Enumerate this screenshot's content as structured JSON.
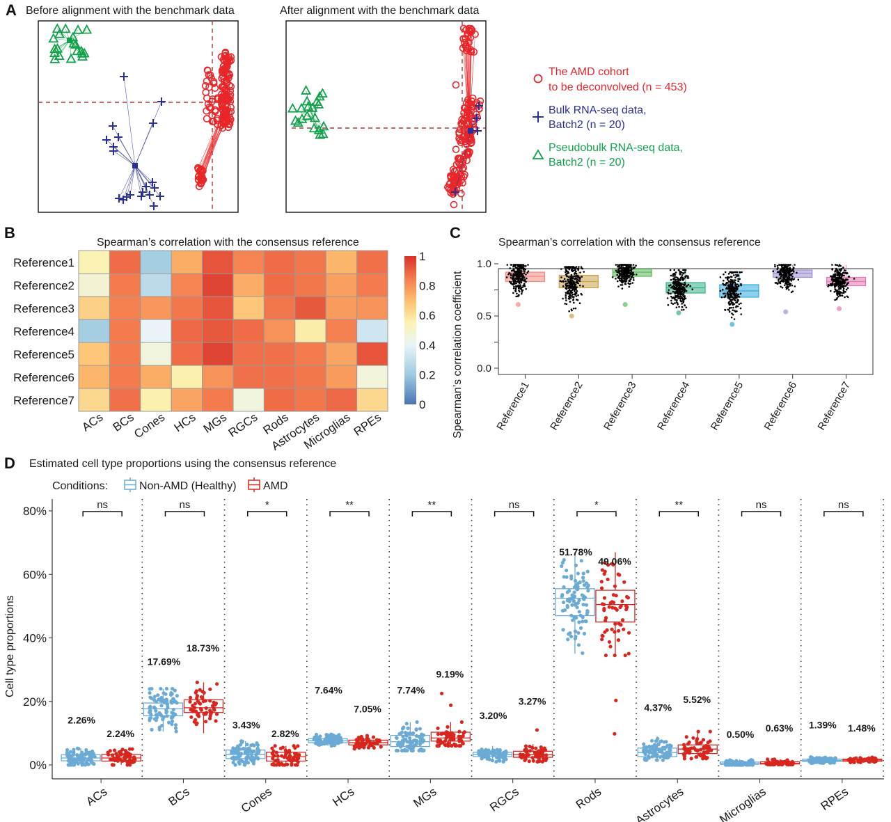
{
  "figure": {
    "panels": [
      "A",
      "B",
      "C",
      "D"
    ]
  },
  "chart_data": [
    {
      "panel": "A",
      "type": "scatter",
      "subplots": [
        {
          "title": "Before alignment with the benchmark data"
        },
        {
          "title": "After alignment with the benchmark data"
        }
      ],
      "legend": {
        "placement": "right",
        "entries": [
          {
            "symbol": "circle",
            "color": "#e8262a",
            "line1": "The AMD cohort",
            "line2": "to be deconvolved (n = 453)"
          },
          {
            "symbol": "plus",
            "color": "#2b3192",
            "line1": "Bulk RNA-seq data,",
            "line2": "Batch2 (n = 20)"
          },
          {
            "symbol": "triangle",
            "color": "#12a14b",
            "line1": "Pseudobulk RNA-seq data,",
            "line2": "Batch2 (n = 20)"
          }
        ]
      },
      "colors": {
        "amd": "#e8262a",
        "bulk": "#2b3192",
        "pseudobulk": "#12a14b",
        "crosshair": "#a33a3a"
      }
    },
    {
      "panel": "B",
      "type": "heatmap",
      "title": "Spearman’s correlation with the consensus reference",
      "rows": [
        "Reference1",
        "Reference2",
        "Reference3",
        "Reference4",
        "Reference5",
        "Reference6",
        "Reference7"
      ],
      "columns": [
        "ACs",
        "BCs",
        "Cones",
        "HCs",
        "MGs",
        "RGCs",
        "Rods",
        "Astrocytes",
        "Microglias",
        "RPEs"
      ],
      "values": [
        [
          0.55,
          0.88,
          0.22,
          0.74,
          0.93,
          0.83,
          0.88,
          0.86,
          0.72,
          0.87
        ],
        [
          0.48,
          0.85,
          0.28,
          0.83,
          0.96,
          0.74,
          0.88,
          0.86,
          0.77,
          0.85
        ],
        [
          0.65,
          0.84,
          0.79,
          0.86,
          0.93,
          0.68,
          0.86,
          0.92,
          0.78,
          0.8
        ],
        [
          0.22,
          0.85,
          0.4,
          0.89,
          0.92,
          0.88,
          0.8,
          0.57,
          0.84,
          0.33
        ],
        [
          0.68,
          0.85,
          0.46,
          0.88,
          0.96,
          0.87,
          0.87,
          0.85,
          0.76,
          0.93
        ],
        [
          0.72,
          0.85,
          0.74,
          0.56,
          0.8,
          0.87,
          0.87,
          0.86,
          0.78,
          0.47
        ],
        [
          0.63,
          0.87,
          0.56,
          0.76,
          0.85,
          0.46,
          0.88,
          0.86,
          0.89,
          0.63
        ]
      ],
      "colorbar": {
        "min": 0,
        "max": 1,
        "ticks": [
          "0",
          "0.2",
          "0.4",
          "0.6",
          "0.8",
          "1"
        ],
        "placement": "right",
        "stops": [
          "#4a74b4",
          "#9ecae1",
          "#e9f4f8",
          "#fbf3b3",
          "#fdbf6f",
          "#f47b4e",
          "#d9322a"
        ]
      }
    },
    {
      "panel": "C",
      "type": "box",
      "title": "Spearman’s correlation with the consensus reference",
      "ylabel": "Spearman’s correlation coefficient",
      "ylim": [
        -0.03,
        1.03
      ],
      "yticks": [
        "0.0",
        "0.5",
        "1.0"
      ],
      "yticks_values": [
        0.0,
        0.5,
        1.0
      ],
      "minor_yticks": [
        0.25,
        0.75
      ],
      "categories": [
        "Reference1",
        "Reference2",
        "Reference3",
        "Reference4",
        "Reference5",
        "Reference6",
        "Reference7"
      ],
      "boxes": [
        {
          "q1": 0.83,
          "median": 0.88,
          "q3": 0.92,
          "low": 0.61,
          "high": 0.99,
          "color": "#f08a80"
        },
        {
          "q1": 0.77,
          "median": 0.83,
          "q3": 0.89,
          "low": 0.5,
          "high": 0.97,
          "color": "#c9a24a"
        },
        {
          "q1": 0.88,
          "median": 0.92,
          "q3": 0.95,
          "low": 0.61,
          "high": 0.99,
          "color": "#5cb85c"
        },
        {
          "q1": 0.72,
          "median": 0.77,
          "q3": 0.82,
          "low": 0.53,
          "high": 0.94,
          "color": "#35b08a"
        },
        {
          "q1": 0.68,
          "median": 0.74,
          "q3": 0.8,
          "low": 0.42,
          "high": 0.92,
          "color": "#33a9dc"
        },
        {
          "q1": 0.87,
          "median": 0.91,
          "q3": 0.94,
          "low": 0.54,
          "high": 0.99,
          "color": "#9f8fd0"
        },
        {
          "q1": 0.79,
          "median": 0.83,
          "q3": 0.87,
          "low": 0.57,
          "high": 0.99,
          "color": "#e377b5"
        }
      ]
    },
    {
      "panel": "D",
      "type": "box",
      "title": "Estimated cell type proportions using the consensus reference",
      "legend": {
        "label": "Conditions:",
        "placement": "top-left",
        "entries": [
          {
            "name": "Non-AMD (Healthy)",
            "color": "#6aaad4"
          },
          {
            "name": "AMD",
            "color": "#d7261e"
          }
        ]
      },
      "ylabel": "Cell type proportions",
      "ylim": [
        -4,
        84
      ],
      "yticks": [
        "0%",
        "20%",
        "40%",
        "60%",
        "80%"
      ],
      "yticks_values": [
        0,
        20,
        40,
        60,
        80
      ],
      "categories": [
        "ACs",
        "BCs",
        "Cones",
        "HCs",
        "MGs",
        "RGCs",
        "Rods",
        "Astrocytes",
        "Microglias",
        "RPEs"
      ],
      "significance": [
        "ns",
        "ns",
        "*",
        "**",
        "**",
        "ns",
        "*",
        "**",
        "ns",
        "ns"
      ],
      "series": [
        {
          "name": "Non-AMD (Healthy)",
          "mean_labels": [
            "2.26%",
            "17.69%",
            "3.43%",
            "7.64%",
            "7.74%",
            "3.20%",
            "51.78%",
            "4.37%",
            "0.50%",
            "1.39%"
          ],
          "label_y": [
            13.0,
            31.5,
            11.5,
            22.5,
            22.5,
            14.5,
            66.0,
            17.0,
            8.5,
            11.5
          ],
          "boxes": [
            {
              "low": 0.0,
              "q1": 1.3,
              "median": 2.2,
              "q3": 3.2,
              "high": 5.2
            },
            {
              "low": 10.5,
              "q1": 15.5,
              "median": 17.7,
              "q3": 19.5,
              "high": 24.0
            },
            {
              "low": 0.0,
              "q1": 2.0,
              "median": 3.3,
              "q3": 4.7,
              "high": 7.5
            },
            {
              "low": 6.0,
              "q1": 7.0,
              "median": 7.6,
              "q3": 8.3,
              "high": 10.0
            },
            {
              "low": 4.5,
              "q1": 5.8,
              "median": 7.3,
              "q3": 9.3,
              "high": 13.5
            },
            {
              "low": 1.0,
              "q1": 2.6,
              "median": 3.3,
              "q3": 4.0,
              "high": 6.0
            },
            {
              "low": 35.0,
              "q1": 47.0,
              "median": 52.5,
              "q3": 55.5,
              "high": 67.0
            },
            {
              "low": 1.5,
              "q1": 2.6,
              "median": 3.9,
              "q3": 5.3,
              "high": 9.0
            },
            {
              "low": 0.0,
              "q1": 0.2,
              "median": 0.4,
              "q3": 0.9,
              "high": 1.8
            },
            {
              "low": 0.6,
              "q1": 1.1,
              "median": 1.4,
              "q3": 1.8,
              "high": 2.5
            }
          ]
        },
        {
          "name": "AMD",
          "mean_labels": [
            "2.24%",
            "18.73%",
            "2.82%",
            "7.05%",
            "9.19%",
            "3.27%",
            "49.06%",
            "5.52%",
            "0.63%",
            "1.48%"
          ],
          "label_y": [
            8.8,
            35.7,
            8.8,
            16.5,
            27.5,
            19.0,
            63.0,
            19.5,
            10.5,
            10.5
          ],
          "boxes": [
            {
              "low": 0.0,
              "q1": 1.2,
              "median": 2.2,
              "q3": 3.3,
              "high": 5.0
            },
            {
              "low": 10.0,
              "q1": 16.5,
              "median": 18.0,
              "q3": 20.5,
              "high": 26.0
            },
            {
              "low": 0.0,
              "q1": 1.2,
              "median": 2.6,
              "q3": 4.0,
              "high": 6.0
            },
            {
              "low": 5.0,
              "q1": 6.3,
              "median": 7.0,
              "q3": 7.8,
              "high": 9.5
            },
            {
              "low": 6.0,
              "q1": 7.5,
              "median": 8.5,
              "q3": 10.3,
              "high": 13.5
            },
            {
              "low": 1.0,
              "q1": 2.4,
              "median": 3.2,
              "q3": 4.3,
              "high": 6.5
            },
            {
              "low": 34.5,
              "q1": 45.0,
              "median": 50.5,
              "q3": 55.0,
              "high": 67.0
            },
            {
              "low": 2.0,
              "q1": 3.6,
              "median": 5.0,
              "q3": 6.3,
              "high": 10.5
            },
            {
              "low": 0.1,
              "q1": 0.3,
              "median": 0.5,
              "q3": 1.0,
              "high": 1.8
            },
            {
              "low": 0.8,
              "q1": 1.2,
              "median": 1.5,
              "q3": 1.8,
              "high": 2.4
            }
          ],
          "outliers": [
            [],
            [],
            [],
            [],
            [
              22.5,
              18.8
            ],
            [
              11.0
            ],
            [
              20.3,
              9.8
            ],
            [],
            [],
            []
          ]
        }
      ]
    }
  ]
}
